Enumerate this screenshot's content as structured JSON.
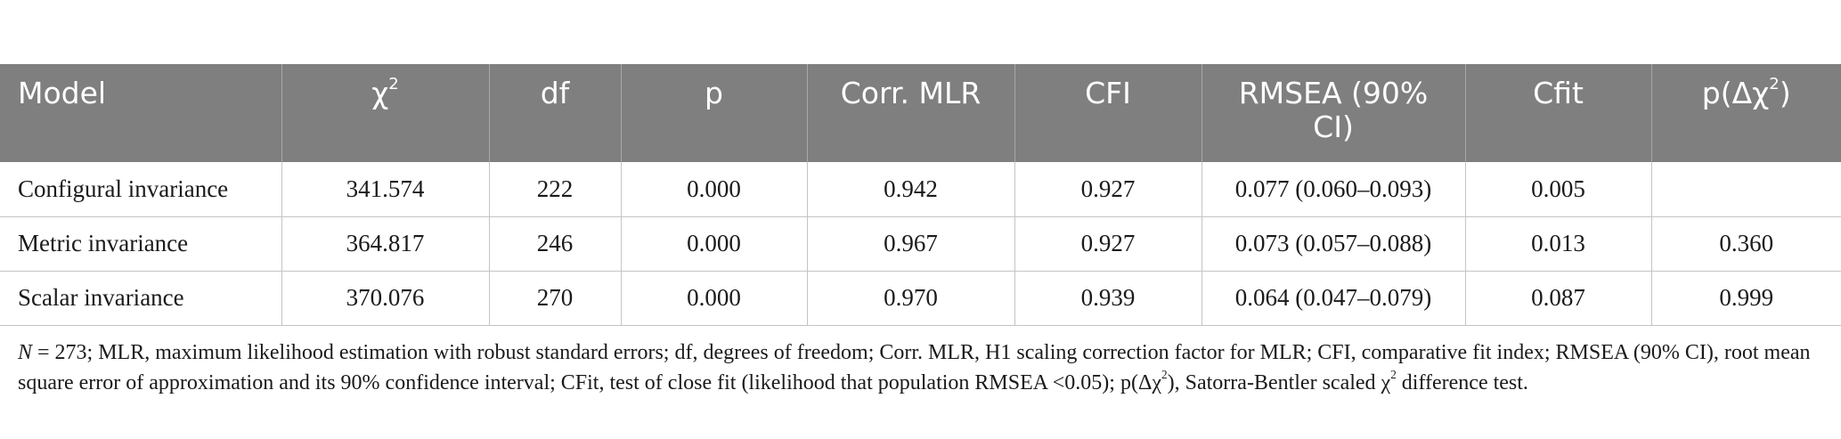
{
  "table": {
    "headers": [
      {
        "key": "model",
        "label": "Model"
      },
      {
        "key": "chi2",
        "label": "χ",
        "sup": "2"
      },
      {
        "key": "df",
        "label": "df"
      },
      {
        "key": "p",
        "label": "p"
      },
      {
        "key": "corr_mlr",
        "label": "Corr. MLR"
      },
      {
        "key": "cfi",
        "label": "CFI"
      },
      {
        "key": "rmsea",
        "label": "RMSEA (90% CI)"
      },
      {
        "key": "cfit",
        "label": "Cfit"
      },
      {
        "key": "p_delta",
        "label": "p(Δχ",
        "sup": "2",
        "label_after": ")"
      }
    ],
    "rows": [
      {
        "model": "Configural invariance",
        "chi2": "341.574",
        "df": "222",
        "p": "0.000",
        "corr_mlr": "0.942",
        "cfi": "0.927",
        "rmsea": "0.077 (0.060–0.093)",
        "cfit": "0.005",
        "p_delta": ""
      },
      {
        "model": "Metric invariance",
        "chi2": "364.817",
        "df": "246",
        "p": "0.000",
        "corr_mlr": "0.967",
        "cfi": "0.927",
        "rmsea": "0.073 (0.057–0.088)",
        "cfit": "0.013",
        "p_delta": "0.360"
      },
      {
        "model": "Scalar invariance",
        "chi2": "370.076",
        "df": "270",
        "p": "0.000",
        "corr_mlr": "0.970",
        "cfi": "0.939",
        "rmsea": "0.064 (0.047–0.079)",
        "cfit": "0.087",
        "p_delta": "0.999"
      }
    ]
  },
  "footnote": {
    "n_label": "N",
    "part1": " = 273; MLR, maximum likelihood estimation with robust standard errors; df, degrees of freedom; Corr. MLR, H1 scaling correction factor for MLR; CFI, comparative fit index; RMSEA (90% CI), root mean square error of approximation and its 90% confidence interval; CFit, test of close fit (likelihood that population RMSEA <0.05); p(Δχ",
    "sup1": "2",
    "part2": "), Satorra-Bentler scaled χ",
    "sup2": "2",
    "part3": " difference test."
  }
}
